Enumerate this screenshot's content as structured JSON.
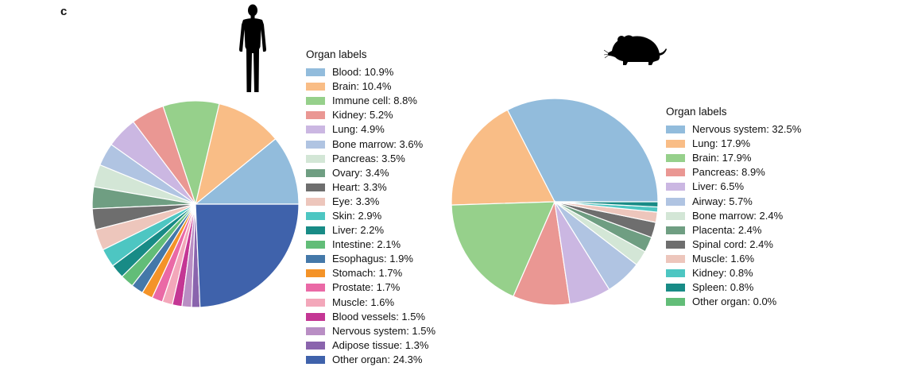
{
  "panel_label": "c",
  "icons": {
    "human": "human-silhouette-icon",
    "mouse": "mouse-silhouette-icon"
  },
  "chart_data": [
    {
      "type": "pie",
      "id": "human",
      "legend_title": "Organ labels",
      "legend_placement": "right",
      "start_angle_deg": 0,
      "direction": "counterclockwise",
      "slices": [
        {
          "label": "Blood",
          "value": 10.9,
          "display": "Blood: 10.9%",
          "color": "#92bcdc"
        },
        {
          "label": "Brain",
          "value": 10.4,
          "display": "Brain: 10.4%",
          "color": "#f9bd86"
        },
        {
          "label": "Immune cell",
          "value": 8.8,
          "display": "Immune cell: 8.8%",
          "color": "#96d08b"
        },
        {
          "label": "Kidney",
          "value": 5.2,
          "display": "Kidney: 5.2%",
          "color": "#ea9793"
        },
        {
          "label": "Lung",
          "value": 4.9,
          "display": "Lung: 4.9%",
          "color": "#cbb7e2"
        },
        {
          "label": "Bone marrow",
          "value": 3.6,
          "display": "Bone marrow: 3.6%",
          "color": "#b0c4e2"
        },
        {
          "label": "Pancreas",
          "value": 3.5,
          "display": "Pancreas: 3.5%",
          "color": "#d3e6d6"
        },
        {
          "label": "Ovary",
          "value": 3.4,
          "display": "Ovary: 3.4%",
          "color": "#6f9e82"
        },
        {
          "label": "Heart",
          "value": 3.3,
          "display": "Heart: 3.3%",
          "color": "#6e6e6e"
        },
        {
          "label": "Eye",
          "value": 3.3,
          "display": "Eye: 3.3%",
          "color": "#edc6bc"
        },
        {
          "label": "Skin",
          "value": 2.9,
          "display": "Skin: 2.9%",
          "color": "#4dc6c2"
        },
        {
          "label": "Liver",
          "value": 2.2,
          "display": "Liver: 2.2%",
          "color": "#188b86"
        },
        {
          "label": "Intestine",
          "value": 2.1,
          "display": "Intestine: 2.1%",
          "color": "#62bd78"
        },
        {
          "label": "Esophagus",
          "value": 1.9,
          "display": "Esophagus: 1.9%",
          "color": "#4478a9"
        },
        {
          "label": "Stomach",
          "value": 1.7,
          "display": "Stomach: 1.7%",
          "color": "#f49328"
        },
        {
          "label": "Prostate",
          "value": 1.7,
          "display": "Prostate: 1.7%",
          "color": "#ea69a6"
        },
        {
          "label": "Muscle",
          "value": 1.6,
          "display": "Muscle: 1.6%",
          "color": "#f3a7ba"
        },
        {
          "label": "Blood vessels",
          "value": 1.5,
          "display": "Blood vessels: 1.5%",
          "color": "#c43694"
        },
        {
          "label": "Nervous system",
          "value": 1.5,
          "display": "Nervous system: 1.5%",
          "color": "#b98ec4"
        },
        {
          "label": "Adipose tissue",
          "value": 1.3,
          "display": "Adipose tissue: 1.3%",
          "color": "#8a64ad"
        },
        {
          "label": "Other organ",
          "value": 24.3,
          "display": "Other organ: 24.3%",
          "color": "#3f62ab"
        }
      ]
    },
    {
      "type": "pie",
      "id": "mouse",
      "legend_title": "Organ labels",
      "legend_placement": "right",
      "start_angle_deg": 0,
      "direction": "counterclockwise",
      "slices": [
        {
          "label": "Nervous system",
          "value": 32.5,
          "display": "Nervous system: 32.5%",
          "color": "#92bcdc"
        },
        {
          "label": "Lung",
          "value": 17.9,
          "display": "Lung: 17.9%",
          "color": "#f9bd86"
        },
        {
          "label": "Brain",
          "value": 17.9,
          "display": "Brain: 17.9%",
          "color": "#96d08b"
        },
        {
          "label": "Pancreas",
          "value": 8.9,
          "display": "Pancreas: 8.9%",
          "color": "#ea9793"
        },
        {
          "label": "Liver",
          "value": 6.5,
          "display": "Liver: 6.5%",
          "color": "#cbb7e2"
        },
        {
          "label": "Airway",
          "value": 5.7,
          "display": "Airway: 5.7%",
          "color": "#b0c4e2"
        },
        {
          "label": "Bone marrow",
          "value": 2.4,
          "display": "Bone marrow: 2.4%",
          "color": "#d3e6d6"
        },
        {
          "label": "Placenta",
          "value": 2.4,
          "display": "Placenta: 2.4%",
          "color": "#6f9e82"
        },
        {
          "label": "Spinal cord",
          "value": 2.4,
          "display": "Spinal cord: 2.4%",
          "color": "#6e6e6e"
        },
        {
          "label": "Muscle",
          "value": 1.6,
          "display": "Muscle: 1.6%",
          "color": "#edc6bc"
        },
        {
          "label": "Kidney",
          "value": 0.8,
          "display": "Kidney: 0.8%",
          "color": "#4dc6c2"
        },
        {
          "label": "Spleen",
          "value": 0.8,
          "display": "Spleen: 0.8%",
          "color": "#188b86"
        },
        {
          "label": "Other organ",
          "value": 0.0,
          "display": "Other organ: 0.0%",
          "color": "#62bd78"
        }
      ]
    }
  ]
}
